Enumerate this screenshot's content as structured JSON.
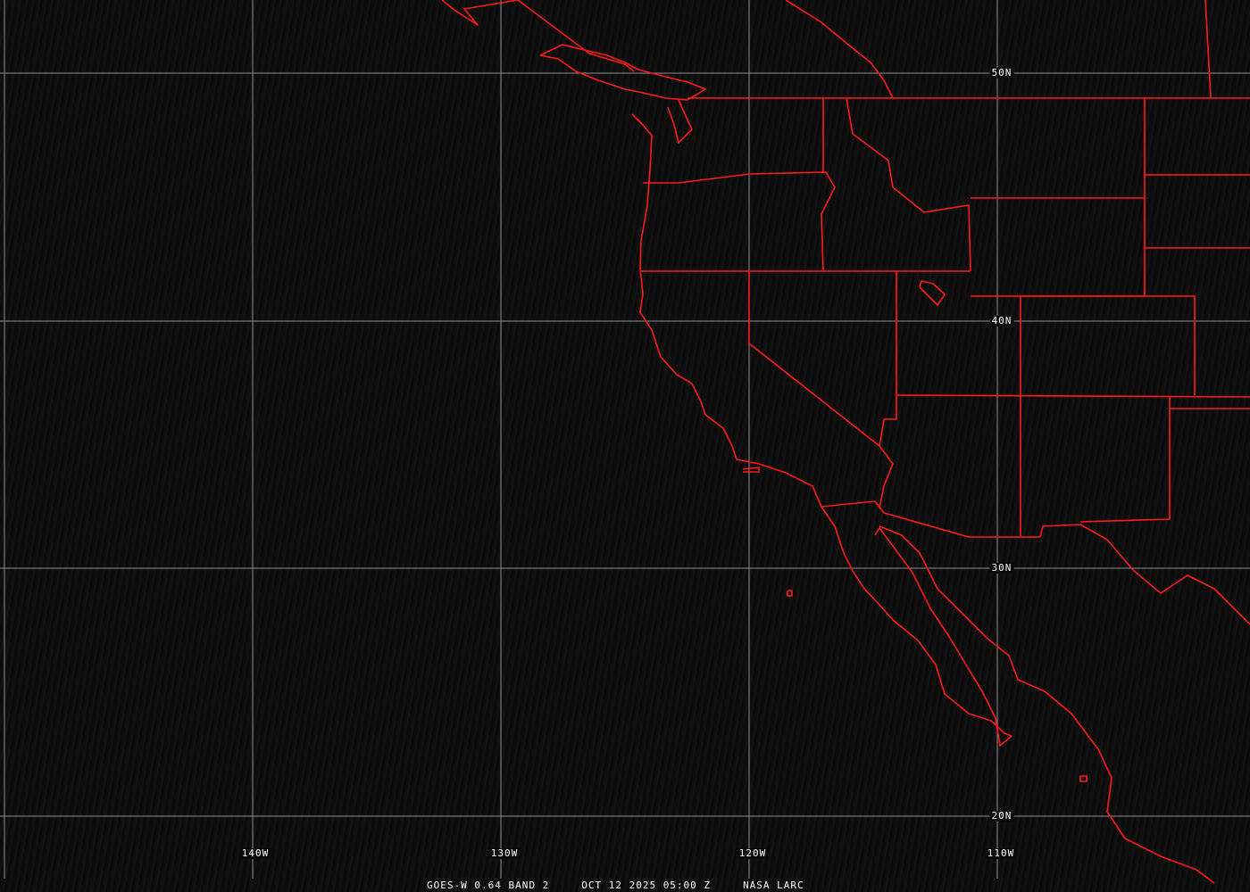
{
  "map": {
    "latitude_labels": [
      "50N",
      "40N",
      "30N",
      "20N"
    ],
    "longitude_labels": [
      "140W",
      "130W",
      "120W",
      "110W"
    ],
    "colors": {
      "background": "#0b0b0b",
      "grid": "#8c8c8c",
      "boundaries": "#ff1a1a",
      "text": "#ffffff"
    }
  },
  "footer": {
    "product": "GOES-W 0.64 BAND 2",
    "datetime": "OCT 12 2025 05:00 Z",
    "source": "NASA LARC"
  }
}
